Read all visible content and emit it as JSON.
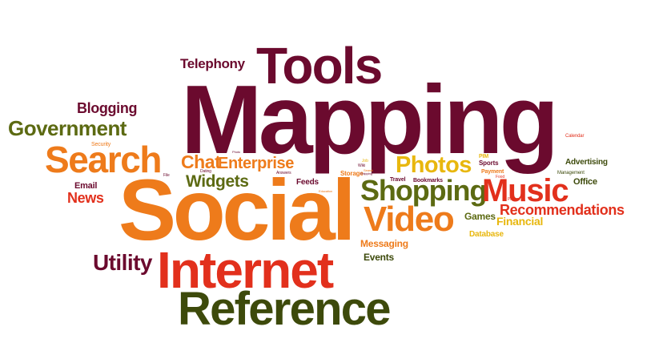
{
  "colors": {
    "maroon": "#6b0a2e",
    "orange": "#ee7b1b",
    "red": "#e2301c",
    "olive": "#5c6a12",
    "gold": "#e8b70e",
    "darkgreen": "#3d4a0b",
    "brown": "#8a2a10"
  },
  "words": [
    {
      "text": "Mapping",
      "color": "maroon"
    },
    {
      "text": "Social",
      "color": "orange"
    },
    {
      "text": "Tools",
      "color": "maroon"
    },
    {
      "text": "Internet",
      "color": "red"
    },
    {
      "text": "Reference",
      "color": "darkgreen"
    },
    {
      "text": "Search",
      "color": "orange"
    },
    {
      "text": "Video",
      "color": "orange"
    },
    {
      "text": "Shopping",
      "color": "olive"
    },
    {
      "text": "Music",
      "color": "red"
    },
    {
      "text": "Government",
      "color": "olive"
    },
    {
      "text": "Photos",
      "color": "gold"
    },
    {
      "text": "Utility",
      "color": "maroon"
    },
    {
      "text": "Recommendations",
      "color": "red"
    },
    {
      "text": "Enterprise",
      "color": "orange"
    },
    {
      "text": "Chat",
      "color": "orange"
    },
    {
      "text": "Widgets",
      "color": "olive"
    },
    {
      "text": "Telephony",
      "color": "maroon"
    },
    {
      "text": "Blogging",
      "color": "maroon"
    },
    {
      "text": "News",
      "color": "red"
    },
    {
      "text": "Financial",
      "color": "gold"
    },
    {
      "text": "Messaging",
      "color": "orange"
    },
    {
      "text": "Events",
      "color": "darkgreen"
    },
    {
      "text": "Games",
      "color": "olive"
    },
    {
      "text": "Email",
      "color": "maroon"
    },
    {
      "text": "Feeds",
      "color": "maroon"
    },
    {
      "text": "Office",
      "color": "darkgreen"
    },
    {
      "text": "Advertising",
      "color": "darkgreen"
    },
    {
      "text": "Database",
      "color": "gold"
    },
    {
      "text": "Bookmarks",
      "color": "maroon"
    },
    {
      "text": "Storage",
      "color": "orange"
    },
    {
      "text": "Travel",
      "color": "maroon"
    },
    {
      "text": "Sports",
      "color": "maroon"
    },
    {
      "text": "Payment",
      "color": "orange"
    },
    {
      "text": "PIM",
      "color": "gold"
    },
    {
      "text": "Security",
      "color": "orange"
    },
    {
      "text": "Calendar",
      "color": "red"
    },
    {
      "text": "Management",
      "color": "darkgreen"
    },
    {
      "text": "Wiki",
      "color": "maroon"
    },
    {
      "text": "Answers",
      "color": "maroon"
    },
    {
      "text": "Dating",
      "color": "maroon"
    },
    {
      "text": "Project",
      "color": "red"
    },
    {
      "text": "Food",
      "color": "red"
    },
    {
      "text": "File",
      "color": "maroon"
    },
    {
      "text": "Job",
      "color": "gold"
    },
    {
      "text": "Search",
      "color": "orange"
    },
    {
      "text": "Photo",
      "color": "maroon"
    },
    {
      "text": "Education",
      "color": "orange"
    },
    {
      "text": "Shipping",
      "color": "maroon"
    }
  ]
}
